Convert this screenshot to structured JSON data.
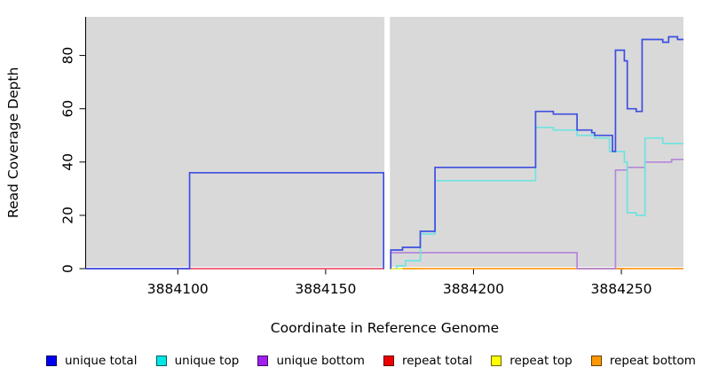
{
  "chart_data": {
    "type": "line",
    "subtype": "step-coverage",
    "title": "",
    "xlabel": "Coordinate in Reference Genome",
    "ylabel": "Read Coverage Depth",
    "xlim": [
      3884069,
      3884271
    ],
    "ylim": [
      0,
      94.5
    ],
    "x_ticks": [
      3884100,
      3884150,
      3884200,
      3884250
    ],
    "y_ticks": [
      0,
      20,
      40,
      60,
      80
    ],
    "plot_bg": "#d9d9d9",
    "grid": false,
    "legend_position": "bottom",
    "no_data_gap": {
      "from": 3884169.6,
      "to": 3884172
    },
    "draw_order": [
      "repeat top",
      "repeat total",
      "repeat bottom",
      "unique bottom",
      "unique top",
      "unique total"
    ],
    "series": [
      {
        "name": "unique total",
        "line_color": "#3d4fe0",
        "legend_color": "#0000f0",
        "segments": [
          [
            [
              3884069,
              0
            ],
            [
              3884104,
              0
            ],
            [
              3884104,
              36
            ],
            [
              3884169.6,
              36
            ],
            [
              3884169.6,
              0
            ]
          ],
          [
            [
              3884172,
              0
            ],
            [
              3884172,
              7
            ],
            [
              3884176,
              7
            ],
            [
              3884176,
              8
            ],
            [
              3884182,
              8
            ],
            [
              3884182,
              14
            ],
            [
              3884187,
              14
            ],
            [
              3884187,
              38
            ],
            [
              3884221,
              38
            ],
            [
              3884221,
              59
            ],
            [
              3884227,
              59
            ],
            [
              3884227,
              58
            ],
            [
              3884235,
              58
            ],
            [
              3884235,
              52
            ],
            [
              3884240,
              52
            ],
            [
              3884240,
              51
            ],
            [
              3884241,
              51
            ],
            [
              3884241,
              50
            ],
            [
              3884247,
              50
            ],
            [
              3884247,
              44
            ],
            [
              3884248,
              44
            ],
            [
              3884248,
              82
            ],
            [
              3884251,
              82
            ],
            [
              3884251,
              78
            ],
            [
              3884252,
              78
            ],
            [
              3884252,
              60
            ],
            [
              3884255,
              60
            ],
            [
              3884255,
              59
            ],
            [
              3884257,
              59
            ],
            [
              3884257,
              86
            ],
            [
              3884264,
              86
            ],
            [
              3884264,
              85
            ],
            [
              3884266,
              85
            ],
            [
              3884266,
              87
            ],
            [
              3884269,
              87
            ],
            [
              3884269,
              86
            ],
            [
              3884271,
              86
            ]
          ]
        ]
      },
      {
        "name": "unique top",
        "line_color": "#6fe3e1",
        "legend_color": "#00e5e5",
        "segments": [
          [
            [
              3884174,
              0
            ],
            [
              3884174,
              1
            ],
            [
              3884177,
              1
            ],
            [
              3884177,
              3
            ],
            [
              3884182,
              3
            ],
            [
              3884182,
              13
            ],
            [
              3884187,
              13
            ],
            [
              3884187,
              33
            ],
            [
              3884221,
              33
            ],
            [
              3884221,
              53
            ],
            [
              3884227,
              53
            ],
            [
              3884227,
              52
            ],
            [
              3884235,
              52
            ],
            [
              3884235,
              50
            ],
            [
              3884241,
              50
            ],
            [
              3884241,
              49
            ],
            [
              3884246,
              49
            ],
            [
              3884246,
              44
            ],
            [
              3884251,
              44
            ],
            [
              3884251,
              40
            ],
            [
              3884252,
              40
            ],
            [
              3884252,
              21
            ],
            [
              3884255,
              21
            ],
            [
              3884255,
              20
            ],
            [
              3884258,
              20
            ],
            [
              3884258,
              49
            ],
            [
              3884264,
              49
            ],
            [
              3884264,
              47
            ],
            [
              3884271,
              47
            ]
          ]
        ]
      },
      {
        "name": "unique bottom",
        "line_color": "#b487d9",
        "legend_color": "#a020f0",
        "segments": [
          [
            [
              3884069,
              0
            ],
            [
              3884104,
              0
            ]
          ],
          [
            [
              3884172,
              0
            ],
            [
              3884172,
              6
            ],
            [
              3884235,
              6
            ],
            [
              3884235,
              0
            ],
            [
              3884248,
              0
            ],
            [
              3884248,
              37
            ],
            [
              3884252,
              37
            ],
            [
              3884252,
              38
            ],
            [
              3884258,
              38
            ],
            [
              3884258,
              40
            ],
            [
              3884267,
              40
            ],
            [
              3884267,
              41
            ],
            [
              3884271,
              41
            ]
          ]
        ]
      },
      {
        "name": "repeat total",
        "line_color": "#e85570",
        "legend_color": "#ee0000",
        "segments": [
          [
            [
              3884104,
              0
            ],
            [
              3884169.6,
              0
            ]
          ],
          [
            [
              3884235,
              0
            ],
            [
              3884251,
              0
            ]
          ]
        ]
      },
      {
        "name": "repeat top",
        "line_color": "#e8e838",
        "legend_color": "#ffff00",
        "segments": [
          [
            [
              3884172,
              0
            ],
            [
              3884182,
              0
            ]
          ]
        ]
      },
      {
        "name": "repeat bottom",
        "line_color": "#ff9d20",
        "legend_color": "#ff9800",
        "segments": [
          [
            [
              3884176,
              0
            ],
            [
              3884271,
              0
            ]
          ]
        ]
      }
    ]
  }
}
